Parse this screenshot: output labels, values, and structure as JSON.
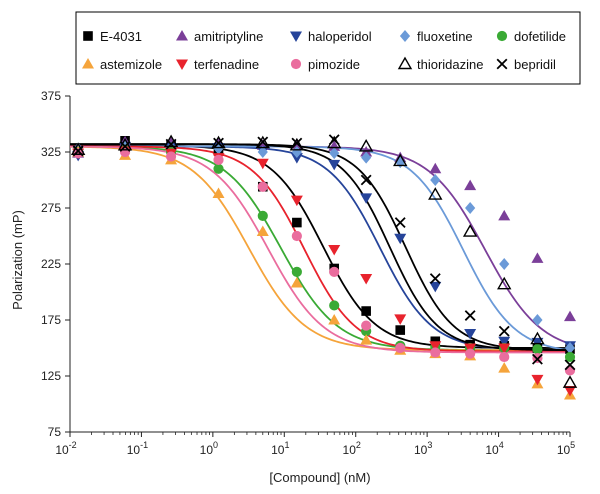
{
  "chart_data": {
    "type": "scatter",
    "xlabel": "[Compound] (nM)",
    "ylabel": "Polarization (mP)",
    "xscale": "log",
    "xlim": [
      0.01,
      100000
    ],
    "ylim": [
      75,
      375
    ],
    "yticks": [
      75,
      125,
      175,
      225,
      275,
      325,
      375
    ],
    "xtick_labels": [
      {
        "base": "10",
        "exp": "-2"
      },
      {
        "base": "10",
        "exp": "-1"
      },
      {
        "base": "10",
        "exp": "0"
      },
      {
        "base": "10",
        "exp": "1"
      },
      {
        "base": "10",
        "exp": "2"
      },
      {
        "base": "10",
        "exp": "3"
      },
      {
        "base": "10",
        "exp": "4"
      },
      {
        "base": "10",
        "exp": "5"
      }
    ],
    "grid": false,
    "legend_position": "top",
    "series": [
      {
        "name": "E-4031",
        "color": "#000000",
        "marker": "square",
        "curve": {
          "top": 331,
          "bottom": 150,
          "ec50": 35,
          "hill": 1.2
        },
        "points": [
          [
            0.013,
            326
          ],
          [
            0.059,
            335
          ],
          [
            0.26,
            331
          ],
          [
            1.2,
            326
          ],
          [
            5,
            294
          ],
          [
            15,
            262
          ],
          [
            50,
            221
          ],
          [
            140,
            183
          ],
          [
            420,
            166
          ],
          [
            1300,
            156
          ],
          [
            4000,
            153
          ],
          [
            12000,
            152
          ],
          [
            35000,
            150
          ],
          [
            100000,
            149
          ]
        ]
      },
      {
        "name": "amitriptyline",
        "color": "#7b3f99",
        "marker": "triangle-up",
        "curve": {
          "top": 330,
          "bottom": 145,
          "ec50": 6500,
          "hill": 1.1
        },
        "points": [
          [
            0.013,
            324
          ],
          [
            0.059,
            334
          ],
          [
            0.26,
            333
          ],
          [
            1.2,
            333
          ],
          [
            5,
            331
          ],
          [
            15,
            332
          ],
          [
            50,
            330
          ],
          [
            140,
            325
          ],
          [
            420,
            320
          ],
          [
            1300,
            310
          ],
          [
            4000,
            295
          ],
          [
            12000,
            268
          ],
          [
            35000,
            230
          ],
          [
            100000,
            178
          ]
        ]
      },
      {
        "name": "haloperidol",
        "color": "#26449a",
        "marker": "triangle-down",
        "curve": {
          "top": 330,
          "bottom": 148,
          "ec50": 220,
          "hill": 1.2
        },
        "points": [
          [
            0.013,
            322
          ],
          [
            0.059,
            330
          ],
          [
            0.26,
            329
          ],
          [
            1.2,
            329
          ],
          [
            5,
            326
          ],
          [
            15,
            320
          ],
          [
            50,
            314
          ],
          [
            140,
            284
          ],
          [
            420,
            248
          ],
          [
            1300,
            205
          ],
          [
            4000,
            163
          ],
          [
            12000,
            156
          ],
          [
            35000,
            155
          ],
          [
            100000,
            152
          ]
        ]
      },
      {
        "name": "fluoxetine",
        "color": "#6b9ad8",
        "marker": "diamond",
        "curve": {
          "top": 330,
          "bottom": 145,
          "ec50": 3200,
          "hill": 1.2
        },
        "points": [
          [
            0.013,
            328
          ],
          [
            0.059,
            330
          ],
          [
            0.26,
            329
          ],
          [
            1.2,
            328
          ],
          [
            5,
            325
          ],
          [
            15,
            325
          ],
          [
            50,
            324
          ],
          [
            140,
            320
          ],
          [
            420,
            316
          ],
          [
            1300,
            300
          ],
          [
            4000,
            275
          ],
          [
            12000,
            225
          ],
          [
            35000,
            175
          ],
          [
            100000,
            150
          ]
        ]
      },
      {
        "name": "dofetilide",
        "color": "#3aaa35",
        "marker": "circle",
        "curve": {
          "top": 330,
          "bottom": 148,
          "ec50": 9,
          "hill": 1.1
        },
        "points": [
          [
            0.013,
            325
          ],
          [
            0.059,
            327
          ],
          [
            0.26,
            325
          ],
          [
            1.2,
            310
          ],
          [
            5,
            268
          ],
          [
            15,
            218
          ],
          [
            50,
            188
          ],
          [
            140,
            165
          ],
          [
            420,
            152
          ],
          [
            1300,
            151
          ],
          [
            4000,
            150
          ],
          [
            12000,
            150
          ],
          [
            35000,
            149
          ],
          [
            100000,
            142
          ]
        ]
      },
      {
        "name": "astemizole",
        "color": "#f5a43b",
        "marker": "triangle-up",
        "curve": {
          "top": 330,
          "bottom": 148,
          "ec50": 3.2,
          "hill": 1.1
        },
        "points": [
          [
            0.013,
            325
          ],
          [
            0.059,
            322
          ],
          [
            0.26,
            318
          ],
          [
            1.2,
            288
          ],
          [
            5,
            254
          ],
          [
            15,
            208
          ],
          [
            50,
            175
          ],
          [
            140,
            157
          ],
          [
            420,
            148
          ],
          [
            1300,
            145
          ],
          [
            4000,
            143
          ],
          [
            12000,
            132
          ],
          [
            35000,
            118
          ],
          [
            100000,
            108
          ]
        ]
      },
      {
        "name": "terfenadine",
        "color": "#e8232d",
        "marker": "triangle-down",
        "curve": {
          "top": 330,
          "bottom": 147,
          "ec50": 19,
          "hill": 1.2
        },
        "points": [
          [
            0.013,
            324
          ],
          [
            0.059,
            326
          ],
          [
            0.26,
            324
          ],
          [
            1.2,
            320
          ],
          [
            5,
            315
          ],
          [
            15,
            282
          ],
          [
            50,
            238
          ],
          [
            140,
            212
          ],
          [
            420,
            176
          ],
          [
            1300,
            152
          ],
          [
            4000,
            150
          ],
          [
            12000,
            150
          ],
          [
            35000,
            122
          ],
          [
            100000,
            112
          ]
        ]
      },
      {
        "name": "pimozide",
        "color": "#ea6d9e",
        "marker": "circle",
        "curve": {
          "top": 330,
          "bottom": 146,
          "ec50": 6,
          "hill": 1.1
        },
        "points": [
          [
            0.013,
            324
          ],
          [
            0.059,
            325
          ],
          [
            0.26,
            321
          ],
          [
            1.2,
            318
          ],
          [
            5,
            294
          ],
          [
            15,
            250
          ],
          [
            50,
            218
          ],
          [
            140,
            170
          ],
          [
            420,
            150
          ],
          [
            1300,
            146
          ],
          [
            4000,
            145
          ],
          [
            12000,
            142
          ],
          [
            35000,
            141
          ],
          [
            100000,
            130
          ]
        ]
      },
      {
        "name": "thioridazine",
        "color": "#000000",
        "marker": "open-triangle",
        "curve": {
          "top": 332,
          "bottom": 148,
          "ec50": 500,
          "hill": 1.3
        },
        "points": [
          [
            0.013,
            327
          ],
          [
            0.059,
            331
          ],
          [
            0.26,
            334
          ],
          [
            1.2,
            333
          ],
          [
            5,
            333
          ],
          [
            15,
            331
          ],
          [
            50,
            333
          ],
          [
            140,
            330
          ],
          [
            420,
            317
          ],
          [
            1300,
            287
          ],
          [
            4000,
            254
          ],
          [
            12000,
            207
          ],
          [
            35000,
            158
          ],
          [
            100000,
            119
          ]
        ]
      },
      {
        "name": "bepridil",
        "color": "#000000",
        "marker": "x",
        "curve": {
          "top": 332,
          "bottom": 148,
          "ec50": 300,
          "hill": 1.3
        },
        "points": [
          [
            0.013,
            326
          ],
          [
            0.059,
            330
          ],
          [
            0.26,
            332
          ],
          [
            1.2,
            333
          ],
          [
            5,
            334
          ],
          [
            15,
            333
          ],
          [
            50,
            336
          ],
          [
            140,
            300
          ],
          [
            420,
            262
          ],
          [
            1300,
            212
          ],
          [
            4000,
            179
          ],
          [
            12000,
            165
          ],
          [
            35000,
            140
          ],
          [
            100000,
            135
          ]
        ]
      }
    ]
  }
}
